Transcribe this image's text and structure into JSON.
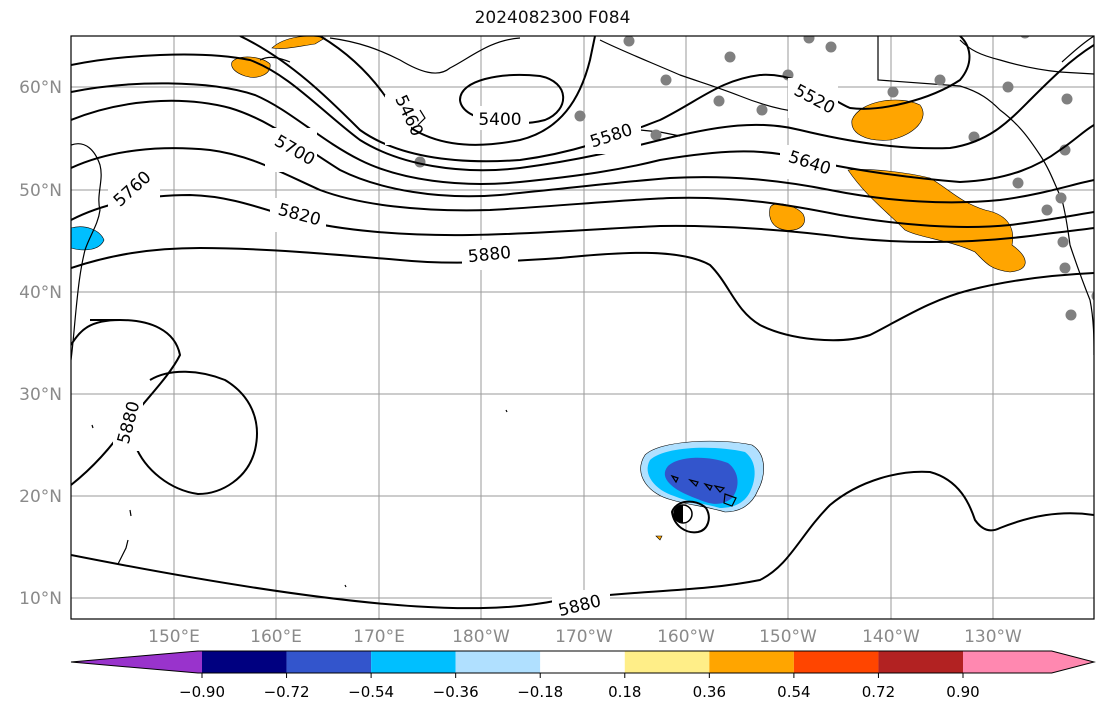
{
  "title": "2024082300 F084",
  "lat_labels": [
    "60°N",
    "50°N",
    "40°N",
    "30°N",
    "20°N",
    "10°N"
  ],
  "lon_labels": [
    "150°E",
    "160°E",
    "170°E",
    "180°W",
    "170°W",
    "160°W",
    "150°W",
    "140°W",
    "130°W"
  ],
  "contour_labels": {
    "c5400": "5400",
    "c5460": "5460",
    "c5520": "5520",
    "c5580": "5580",
    "c5640": "5640",
    "c5700": "5700",
    "c5760": "5760",
    "c5820": "5820",
    "c5880_a": "5880",
    "c5880_b": "5880",
    "c5880_c": "5880"
  },
  "colorbar": {
    "colors": [
      "#9933cc",
      "#000080",
      "#3355cc",
      "#00bfff",
      "#b0e0ff",
      "#ffffff",
      "#ffee88",
      "#ffa500",
      "#ff4500",
      "#b22222",
      "#ff88b0"
    ],
    "ticks": [
      "−0.90",
      "−0.72",
      "−0.54",
      "−0.36",
      "−0.18",
      "0.18",
      "0.36",
      "0.54",
      "0.72",
      "0.90"
    ]
  }
}
